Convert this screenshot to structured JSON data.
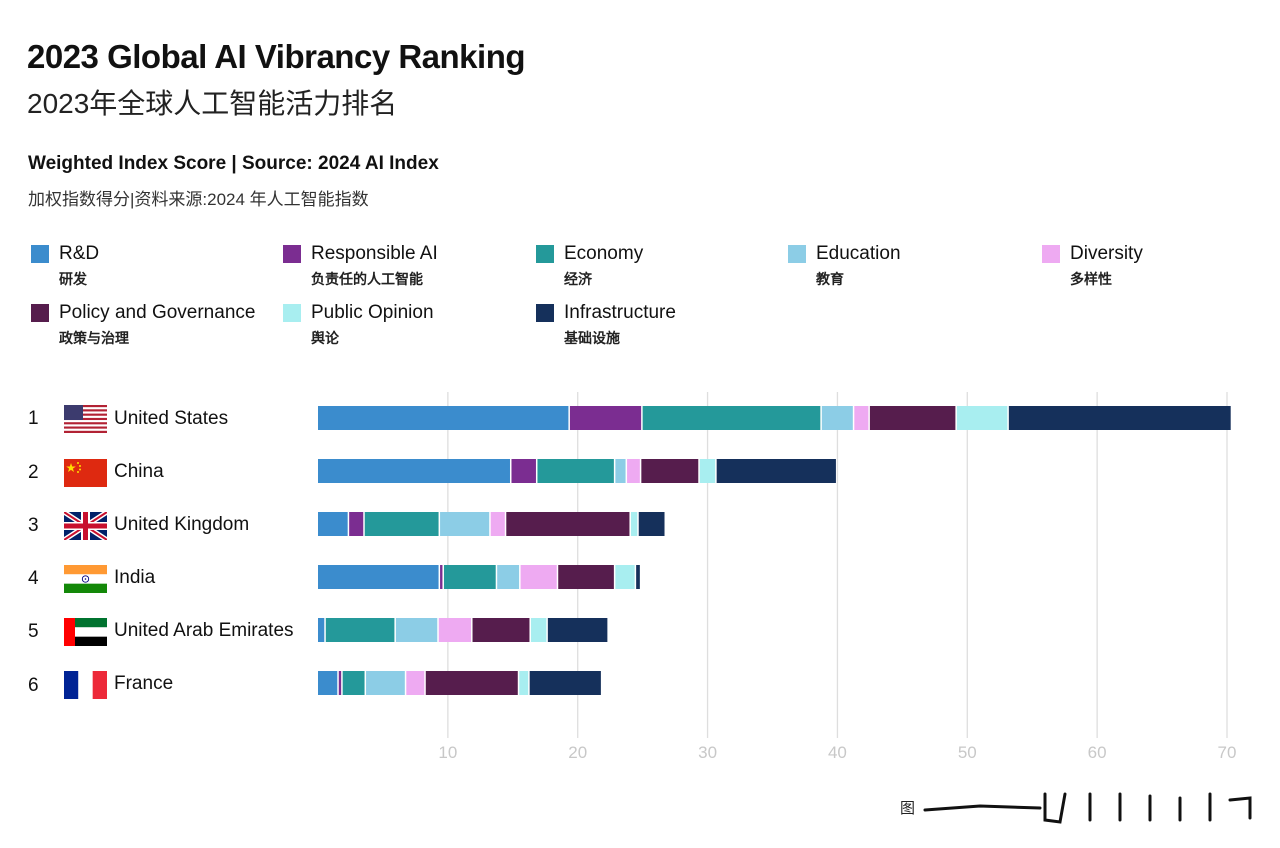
{
  "header": {
    "title": "2023 Global AI Vibrancy Ranking",
    "title_zh": "2023年全球人工智能活力排名",
    "subtitle": "Weighted Index Score | Source: 2024 AI Index",
    "subtitle_zh": "加权指数得分|资料来源:2024 年人工智能指数"
  },
  "legend": [
    {
      "en": "R&D",
      "zh": "研发",
      "color": "#3b8ccd"
    },
    {
      "en": "Responsible AI",
      "zh": "负责任的人工智能",
      "color": "#7b2d91"
    },
    {
      "en": "Economy",
      "zh": "经济",
      "color": "#24999a"
    },
    {
      "en": "Education",
      "zh": "教育",
      "color": "#8ccde6"
    },
    {
      "en": "Diversity",
      "zh": "多样性",
      "color": "#eeaaf2"
    },
    {
      "en": "Policy and Governance",
      "zh": "政策与治理",
      "color": "#561d4d"
    },
    {
      "en": "Public Opinion",
      "zh": "舆论",
      "color": "#a8eef0"
    },
    {
      "en": "Infrastructure",
      "zh": "基础设施",
      "color": "#15305b"
    }
  ],
  "rows": [
    {
      "rank": "1",
      "name": "United States",
      "flag": "us-flag-icon"
    },
    {
      "rank": "2",
      "name": "China",
      "flag": "china-flag-icon"
    },
    {
      "rank": "3",
      "name": "United Kingdom",
      "flag": "uk-flag-icon"
    },
    {
      "rank": "4",
      "name": "India",
      "flag": "india-flag-icon"
    },
    {
      "rank": "5",
      "name": "United Arab Emirates",
      "flag": "uae-flag-icon"
    },
    {
      "rank": "6",
      "name": "France",
      "flag": "france-flag-icon"
    }
  ],
  "chart_data": {
    "type": "bar",
    "orientation": "horizontal",
    "stacked": true,
    "categories": [
      "United States",
      "China",
      "United Kingdom",
      "India",
      "United Arab Emirates",
      "France"
    ],
    "series": [
      {
        "name": "R&D",
        "values": [
          19.4,
          14.9,
          2.4,
          9.4,
          0.6,
          1.6
        ]
      },
      {
        "name": "Responsible AI",
        "values": [
          5.6,
          2.0,
          1.2,
          0.3,
          0.0,
          0.3
        ]
      },
      {
        "name": "Economy",
        "values": [
          13.8,
          6.0,
          5.8,
          4.1,
          5.4,
          1.8
        ]
      },
      {
        "name": "Education",
        "values": [
          2.5,
          0.9,
          3.9,
          1.8,
          3.3,
          3.1
        ]
      },
      {
        "name": "Diversity",
        "values": [
          1.2,
          1.1,
          1.2,
          2.9,
          2.6,
          1.5
        ]
      },
      {
        "name": "Policy and Governance",
        "values": [
          6.7,
          4.5,
          9.6,
          4.4,
          4.5,
          7.2
        ]
      },
      {
        "name": "Public Opinion",
        "values": [
          4.0,
          1.3,
          0.6,
          1.6,
          1.3,
          0.8
        ]
      },
      {
        "name": "Infrastructure",
        "values": [
          17.2,
          9.3,
          2.1,
          0.4,
          4.7,
          5.6
        ]
      }
    ],
    "xlim": [
      0,
      70
    ],
    "xticks": [
      10,
      20,
      30,
      40,
      50,
      60,
      70
    ],
    "grid": true,
    "legend_position": "top"
  },
  "footer": {
    "note": "图"
  }
}
